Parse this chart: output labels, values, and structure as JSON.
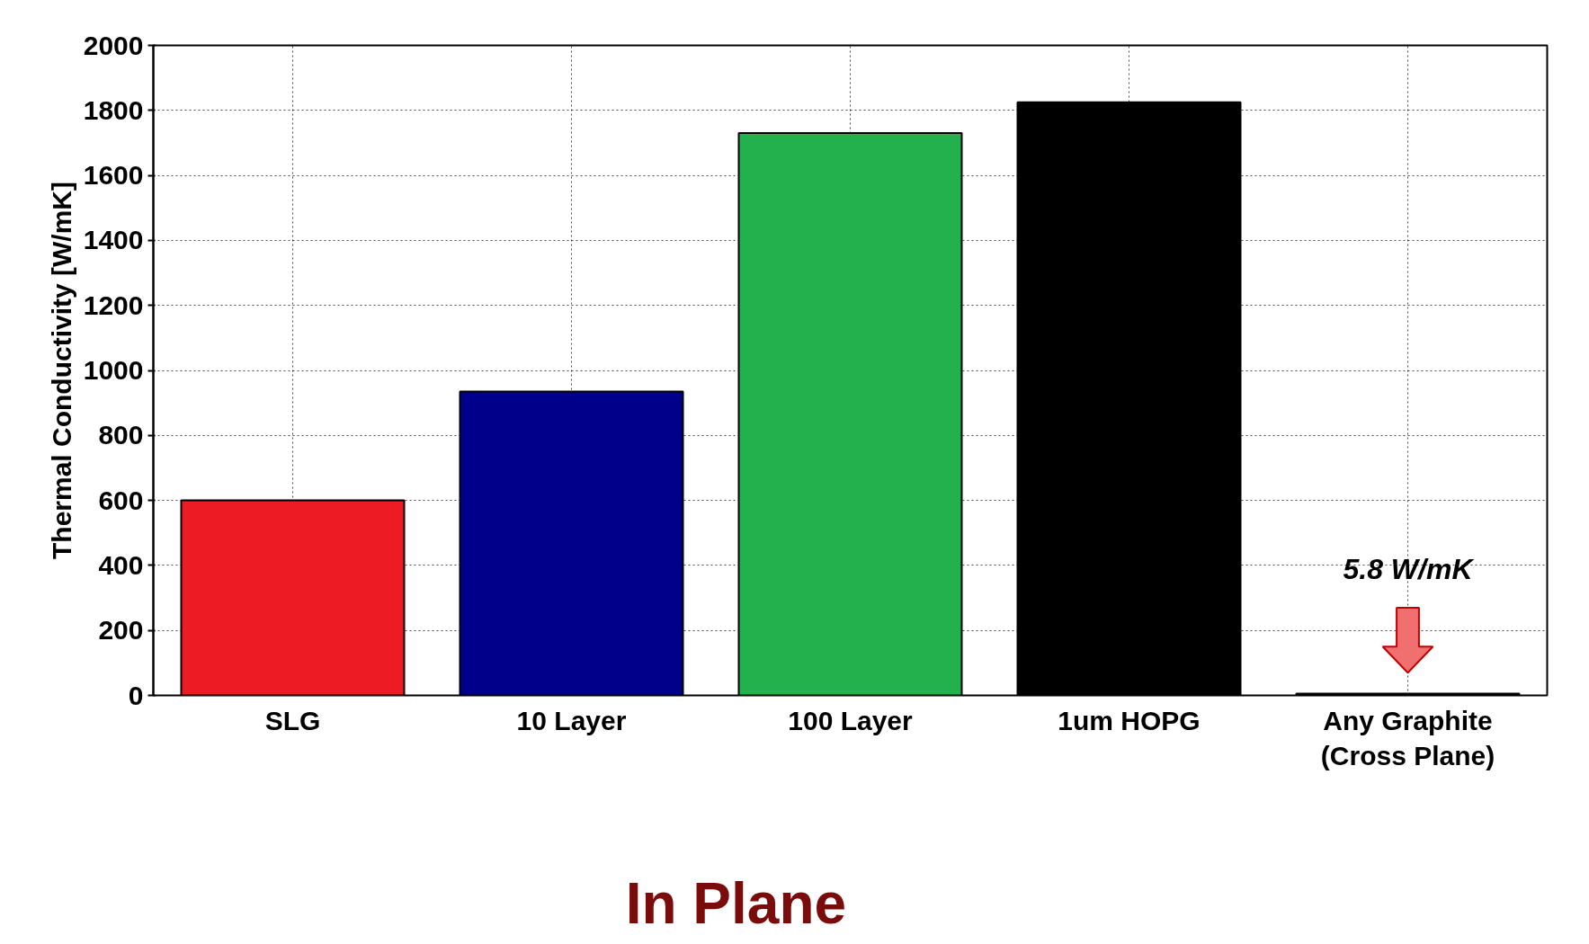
{
  "chart_data": {
    "type": "bar",
    "ylabel": "Thermal Conductivity [W/mK]",
    "categories": [
      "SLG",
      "10 Layer",
      "100 Layer",
      "1um HOPG",
      "Any Graphite\n(Cross Plane)"
    ],
    "values": [
      600,
      935,
      1730,
      1825,
      5.8
    ],
    "colors": [
      "#ed1c24",
      "#00008b",
      "#22b14c",
      "#000000",
      "#000000"
    ],
    "ylim": [
      0,
      2000
    ],
    "yticks": [
      0,
      200,
      400,
      600,
      800,
      1000,
      1200,
      1400,
      1600,
      1800,
      2000
    ],
    "grid": true,
    "annotations": [
      "5.8 W/mK",
      "In Plane"
    ]
  }
}
